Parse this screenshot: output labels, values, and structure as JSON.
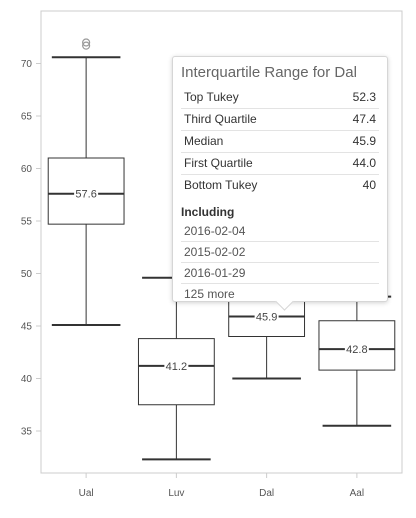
{
  "chart_data": {
    "type": "boxplot",
    "categories": [
      "Ual",
      "Luv",
      "Dal",
      "Aal"
    ],
    "ylim": [
      31,
      75
    ],
    "yticks": [
      35,
      40,
      45,
      50,
      55,
      60,
      65,
      70
    ],
    "boxes": [
      {
        "name": "Ual",
        "low": 45.1,
        "q1": 54.7,
        "median": 57.6,
        "q3": 61.0,
        "high": 70.6,
        "outliers": [
          71.7,
          72.0
        ],
        "median_label": "57.6"
      },
      {
        "name": "Luv",
        "low": 32.3,
        "q1": 37.5,
        "median": 41.2,
        "q3": 43.8,
        "high": 49.6,
        "outliers": [],
        "median_label": "41.2"
      },
      {
        "name": "Dal",
        "low": 40.0,
        "q1": 44.0,
        "median": 45.9,
        "q3": 47.4,
        "high": 52.3,
        "outliers": [],
        "median_label": "45.9"
      },
      {
        "name": "Aal",
        "low": 35.5,
        "q1": 40.8,
        "median": 42.8,
        "q3": 45.5,
        "high": 47.8,
        "outliers": [],
        "median_label": "42.8"
      }
    ],
    "colors": {
      "box_stroke": "#333333",
      "axis": "#cccccc",
      "outlier": "#999999",
      "background": "#ffffff"
    }
  },
  "tooltip": {
    "title": "Interquartile Range for Dal",
    "rows": [
      {
        "label": "Top Tukey",
        "value": "52.3"
      },
      {
        "label": "Third Quartile",
        "value": "47.4"
      },
      {
        "label": "Median",
        "value": "45.9"
      },
      {
        "label": "First Quartile",
        "value": "44.0"
      },
      {
        "label": "Bottom Tukey",
        "value": "40"
      }
    ],
    "including_heading": "Including",
    "dates": [
      "2016-02-04",
      "2015-02-02",
      "2016-01-29"
    ],
    "more": "125 more"
  }
}
